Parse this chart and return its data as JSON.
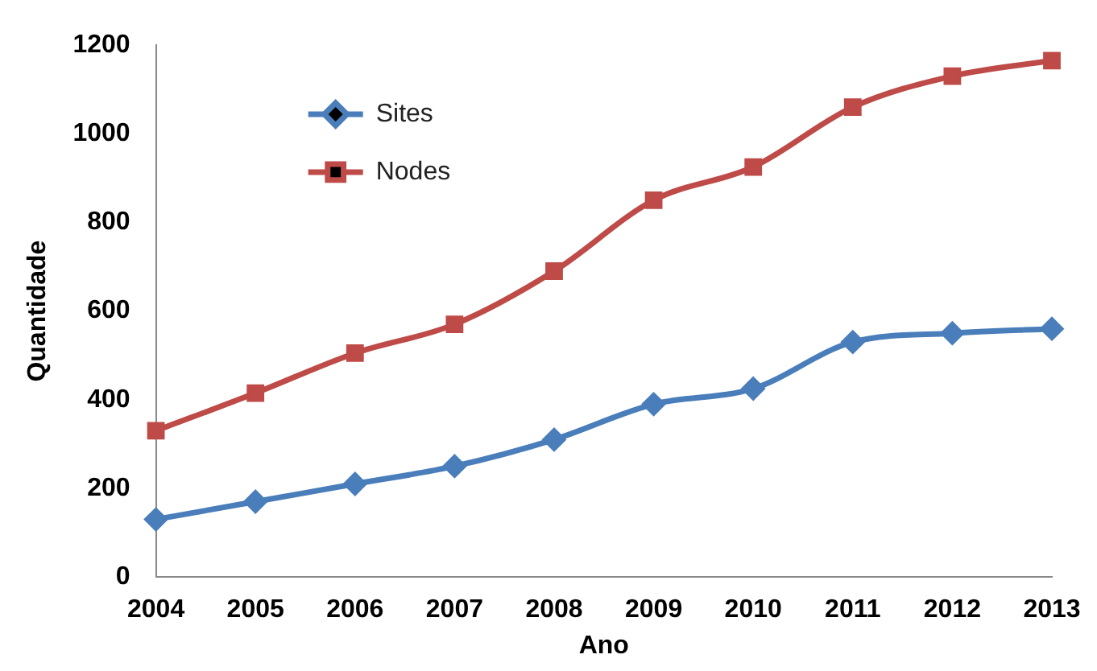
{
  "chart_data": {
    "type": "line",
    "xlabel": "Ano",
    "ylabel": "Quantidade",
    "categories": [
      "2004",
      "2005",
      "2006",
      "2007",
      "2008",
      "2009",
      "2010",
      "2011",
      "2012",
      "2013"
    ],
    "series": [
      {
        "name": "Sites",
        "color": "#4a7ebb",
        "marker": "diamond",
        "values": [
          130,
          170,
          210,
          250,
          310,
          390,
          425,
          530,
          550,
          560
        ]
      },
      {
        "name": "Nodes",
        "color": "#be4b48",
        "marker": "square",
        "values": [
          330,
          415,
          505,
          570,
          690,
          850,
          925,
          1060,
          1130,
          1165
        ]
      }
    ],
    "ylim": [
      0,
      1200
    ],
    "yticks": [
      0,
      200,
      400,
      600,
      800,
      1000,
      1200
    ],
    "grid": false,
    "legend": "top left",
    "line_style": "solid"
  }
}
